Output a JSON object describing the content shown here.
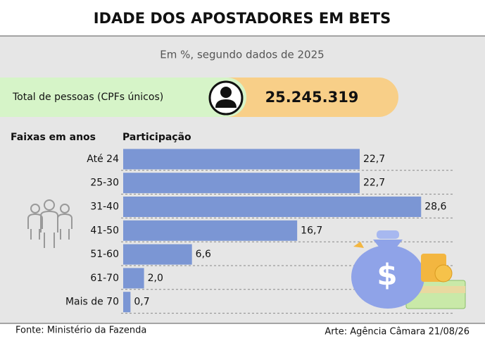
{
  "chart_data": {
    "type": "bar",
    "orientation": "horizontal",
    "title": "IDADE DOS APOSTADORES EM BETS",
    "subtitle": "Em %, segundo dados de 2025",
    "summary": {
      "label": "Total de pessoas (CPFs únicos)",
      "value": "25.245.319"
    },
    "category_header": "Faixas em anos",
    "value_header": "Participação",
    "categories": [
      "Até 24",
      "25-30",
      "31-40",
      "41-50",
      "51-60",
      "61-70",
      "Mais de 70"
    ],
    "values": [
      22.7,
      22.7,
      28.6,
      16.7,
      6.6,
      2.0,
      0.7
    ],
    "value_labels": [
      "22,7",
      "22,7",
      "28,6",
      "16,7",
      "6,6",
      "2,0",
      "0,7"
    ],
    "color": "#7b96d4",
    "source": "Fonte: Ministério da Fazenda",
    "credit": "Arte: Agência Câmara 21/08/26"
  }
}
